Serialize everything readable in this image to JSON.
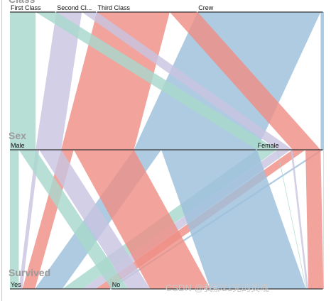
{
  "chart_data": {
    "type": "parallel_sets",
    "dimensions": [
      {
        "name": "Class",
        "categories": [
          "First Class",
          "Second Cl...",
          "Third Class",
          "Crew"
        ]
      },
      {
        "name": "Sex",
        "categories": [
          "Male",
          "Female"
        ]
      },
      {
        "name": "Survived",
        "categories": [
          "Yes",
          "No"
        ]
      }
    ],
    "category_counts": {
      "Class": [
        325,
        285,
        706,
        885
      ],
      "Sex": [
        1731,
        470
      ],
      "Survived": [
        711,
        1490
      ]
    },
    "ribbons_class_sex": [
      {
        "class": "First Class",
        "sex": "Male",
        "value": 180
      },
      {
        "class": "First Class",
        "sex": "Female",
        "value": 145
      },
      {
        "class": "Second Cl...",
        "sex": "Male",
        "value": 179
      },
      {
        "class": "Second Cl...",
        "sex": "Female",
        "value": 106
      },
      {
        "class": "Third Class",
        "sex": "Male",
        "value": 510
      },
      {
        "class": "Third Class",
        "sex": "Female",
        "value": 196
      },
      {
        "class": "Crew",
        "sex": "Male",
        "value": 862
      },
      {
        "class": "Crew",
        "sex": "Female",
        "value": 23
      }
    ],
    "ribbons_sex_survived": [
      {
        "class": "First Class",
        "sex": "Male",
        "survived": "Yes",
        "value": 62
      },
      {
        "class": "First Class",
        "sex": "Male",
        "survived": "No",
        "value": 118
      },
      {
        "class": "Second Cl...",
        "sex": "Male",
        "survived": "Yes",
        "value": 25
      },
      {
        "class": "Second Cl...",
        "sex": "Male",
        "survived": "No",
        "value": 154
      },
      {
        "class": "Third Class",
        "sex": "Male",
        "survived": "Yes",
        "value": 88
      },
      {
        "class": "Third Class",
        "sex": "Male",
        "survived": "No",
        "value": 422
      },
      {
        "class": "Crew",
        "sex": "Male",
        "survived": "Yes",
        "value": 192
      },
      {
        "class": "Crew",
        "sex": "Male",
        "survived": "No",
        "value": 670
      },
      {
        "class": "First Class",
        "sex": "Female",
        "survived": "Yes",
        "value": 141
      },
      {
        "class": "First Class",
        "sex": "Female",
        "survived": "No",
        "value": 4
      },
      {
        "class": "Second Cl...",
        "sex": "Female",
        "survived": "Yes",
        "value": 93
      },
      {
        "class": "Second Cl...",
        "sex": "Female",
        "survived": "No",
        "value": 13
      },
      {
        "class": "Third Class",
        "sex": "Female",
        "survived": "Yes",
        "value": 90
      },
      {
        "class": "Third Class",
        "sex": "Female",
        "survived": "No",
        "value": 106
      },
      {
        "class": "Crew",
        "sex": "Female",
        "survived": "Yes",
        "value": 20
      },
      {
        "class": "Crew",
        "sex": "Female",
        "survived": "No",
        "value": 3
      }
    ],
    "colors": {
      "First Class": "#a8d8cc",
      "Second Cl...": "#c8c4e0",
      "Third Class": "#ee8f86",
      "Crew": "#9ec0dc"
    }
  },
  "watermark": "CSDN @我那21克的灵魂"
}
